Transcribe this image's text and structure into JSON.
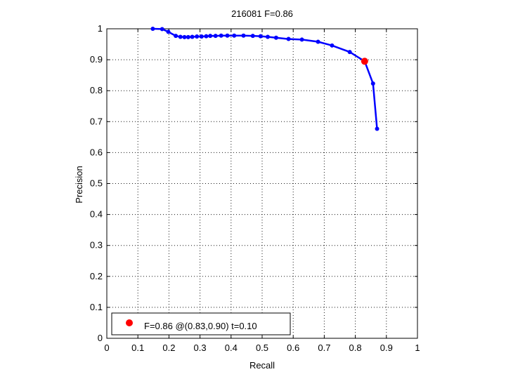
{
  "chart_data": {
    "type": "line",
    "title": "216081 F=0.86",
    "xlabel": "Recall",
    "ylabel": "Precision",
    "xlim": [
      0,
      1
    ],
    "ylim": [
      0,
      1
    ],
    "x_ticks": [
      "0",
      "0.1",
      "0.2",
      "0.3",
      "0.4",
      "0.5",
      "0.6",
      "0.7",
      "0.8",
      "0.9",
      "1"
    ],
    "y_ticks": [
      "0",
      "0.1",
      "0.2",
      "0.3",
      "0.4",
      "0.5",
      "0.6",
      "0.7",
      "0.8",
      "0.9",
      "1"
    ],
    "grid": true,
    "legend_position": "bottom-left",
    "series": [
      {
        "color": "#0000ff",
        "points": [
          [
            0.148,
            1.0
          ],
          [
            0.178,
            0.999
          ],
          [
            0.198,
            0.99
          ],
          [
            0.222,
            0.977
          ],
          [
            0.237,
            0.974
          ],
          [
            0.25,
            0.973
          ],
          [
            0.262,
            0.973
          ],
          [
            0.275,
            0.974
          ],
          [
            0.29,
            0.975
          ],
          [
            0.305,
            0.975
          ],
          [
            0.32,
            0.976
          ],
          [
            0.333,
            0.977
          ],
          [
            0.35,
            0.977
          ],
          [
            0.368,
            0.978
          ],
          [
            0.388,
            0.978
          ],
          [
            0.41,
            0.978
          ],
          [
            0.44,
            0.978
          ],
          [
            0.47,
            0.977
          ],
          [
            0.495,
            0.976
          ],
          [
            0.518,
            0.974
          ],
          [
            0.545,
            0.971
          ],
          [
            0.585,
            0.967
          ],
          [
            0.628,
            0.965
          ],
          [
            0.68,
            0.958
          ],
          [
            0.725,
            0.946
          ],
          [
            0.782,
            0.925
          ],
          [
            0.83,
            0.895
          ],
          [
            0.857,
            0.823
          ],
          [
            0.87,
            0.677
          ]
        ]
      }
    ],
    "best_point": {
      "x": 0.83,
      "y": 0.895,
      "color": "#ff0000",
      "label": "F=0.86 @(0.83,0.90) t=0.10"
    }
  }
}
